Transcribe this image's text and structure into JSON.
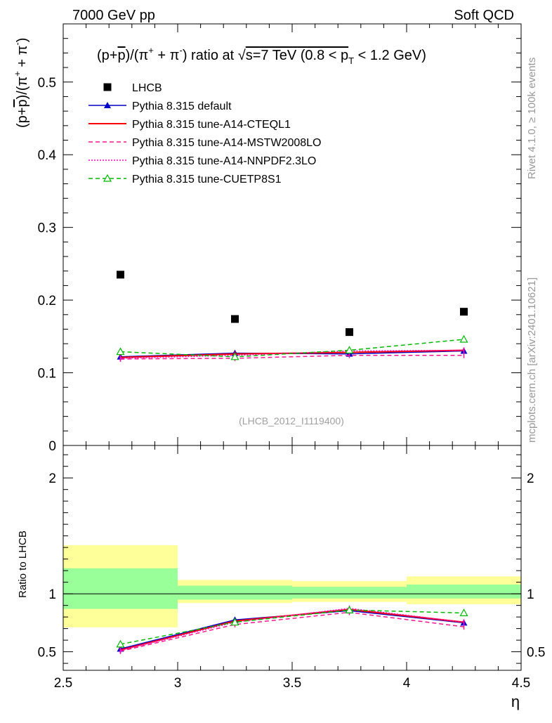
{
  "header": {
    "left": "7000 GeV pp",
    "right": "Soft QCD"
  },
  "side": {
    "rivet": "Rivet 4.1.0, ≥ 100k events",
    "mcplots": "mcplots.cern.ch [arXiv:2401.10621]"
  },
  "chart_data": [
    {
      "panel": "main",
      "type": "line",
      "title_parts": {
        "a": "(p+",
        "pbar": "p",
        "b": ")/(π",
        "plus": "+",
        "c": " + π",
        "minus": "-",
        "d": ") ratio at √",
        "e": "s=7 TeV (0.8 < p",
        "sub": "T",
        "f": " < 1.2 GeV)"
      },
      "ylabel_parts": {
        "a": "(p+",
        "pbar": "p",
        "b": ")/(π",
        "plus": "+",
        "c": " + π",
        "minus": "-",
        "d": ")"
      },
      "xlim": [
        2.5,
        4.5
      ],
      "ylim": [
        0,
        0.58
      ],
      "yticks": [
        0.1,
        0.2,
        0.3,
        0.4,
        0.5
      ],
      "ytick_labels": [
        "0.1",
        "0.2",
        "0.3",
        "0.4",
        "0.5"
      ],
      "y_zero_label": "0",
      "watermark": "(LHCB_2012_I1119400)",
      "x": [
        2.75,
        3.25,
        3.75,
        4.25
      ],
      "series": [
        {
          "name": "LHCB",
          "color": "#000000",
          "style": "data",
          "values": [
            0.235,
            0.174,
            0.156,
            0.184
          ]
        },
        {
          "name": "Pythia 8.315 default",
          "color": "#0000cc",
          "style": "solid-triangle",
          "values": [
            0.122,
            0.127,
            0.126,
            0.13
          ]
        },
        {
          "name": "Pythia 8.315 tune-A14-CTEQL1",
          "color": "#ff0000",
          "style": "solid",
          "values": [
            0.121,
            0.126,
            0.128,
            0.131
          ]
        },
        {
          "name": "Pythia 8.315 tune-A14-MSTW2008LO",
          "color": "#ff1493",
          "style": "dashed",
          "values": [
            0.119,
            0.12,
            0.124,
            0.124
          ]
        },
        {
          "name": "Pythia 8.315 tune-A14-NNPDF2.3LO",
          "color": "#ff00cc",
          "style": "dotted",
          "values": [
            0.12,
            0.124,
            0.13,
            0.131
          ]
        },
        {
          "name": "Pythia 8.315 tune-CUETP8S1",
          "color": "#00bb00",
          "style": "dashed-open-triangle",
          "values": [
            0.129,
            0.122,
            0.131,
            0.146
          ]
        }
      ]
    },
    {
      "panel": "ratio",
      "type": "line",
      "ylabel": "Ratio to LHCB",
      "xlabel": "η",
      "xlim": [
        2.5,
        4.5
      ],
      "ylim": [
        0.34,
        2.28
      ],
      "xticks": [
        2.5,
        3,
        3.5,
        4,
        4.5
      ],
      "xtick_labels": [
        "2.5",
        "3",
        "3.5",
        "4",
        "4.5"
      ],
      "yticks": [
        0.5,
        1,
        2
      ],
      "ytick_labels": [
        "0.5",
        "1",
        "2"
      ],
      "bins": [
        [
          2.5,
          3.0
        ],
        [
          3.0,
          3.5
        ],
        [
          3.5,
          4.0
        ],
        [
          4.0,
          4.5
        ]
      ],
      "band_stat": [
        [
          0.87,
          1.22
        ],
        [
          0.95,
          1.07
        ],
        [
          0.96,
          1.06
        ],
        [
          0.96,
          1.08
        ]
      ],
      "band_total": [
        [
          0.71,
          1.42
        ],
        [
          0.92,
          1.12
        ],
        [
          0.93,
          1.11
        ],
        [
          0.91,
          1.15
        ]
      ],
      "x": [
        2.75,
        3.25,
        3.75,
        4.25
      ],
      "series": [
        {
          "name": "Pythia 8.315 default",
          "color": "#0000cc",
          "style": "solid-triangle",
          "values": [
            0.525,
            0.775,
            0.855,
            0.75
          ]
        },
        {
          "name": "Pythia 8.315 tune-A14-CTEQL1",
          "color": "#ff0000",
          "style": "solid",
          "values": [
            0.515,
            0.765,
            0.865,
            0.755
          ]
        },
        {
          "name": "Pythia 8.315 tune-A14-MSTW2008LO",
          "color": "#ff1493",
          "style": "dashed",
          "values": [
            0.505,
            0.735,
            0.84,
            0.715
          ]
        },
        {
          "name": "Pythia 8.315 tune-A14-NNPDF2.3LO",
          "color": "#ff00cc",
          "style": "dotted",
          "values": [
            0.512,
            0.755,
            0.875,
            0.755
          ]
        },
        {
          "name": "Pythia 8.315 tune-CUETP8S1",
          "color": "#00bb00",
          "style": "dashed-open-triangle",
          "values": [
            0.565,
            0.755,
            0.86,
            0.835
          ]
        }
      ]
    }
  ]
}
